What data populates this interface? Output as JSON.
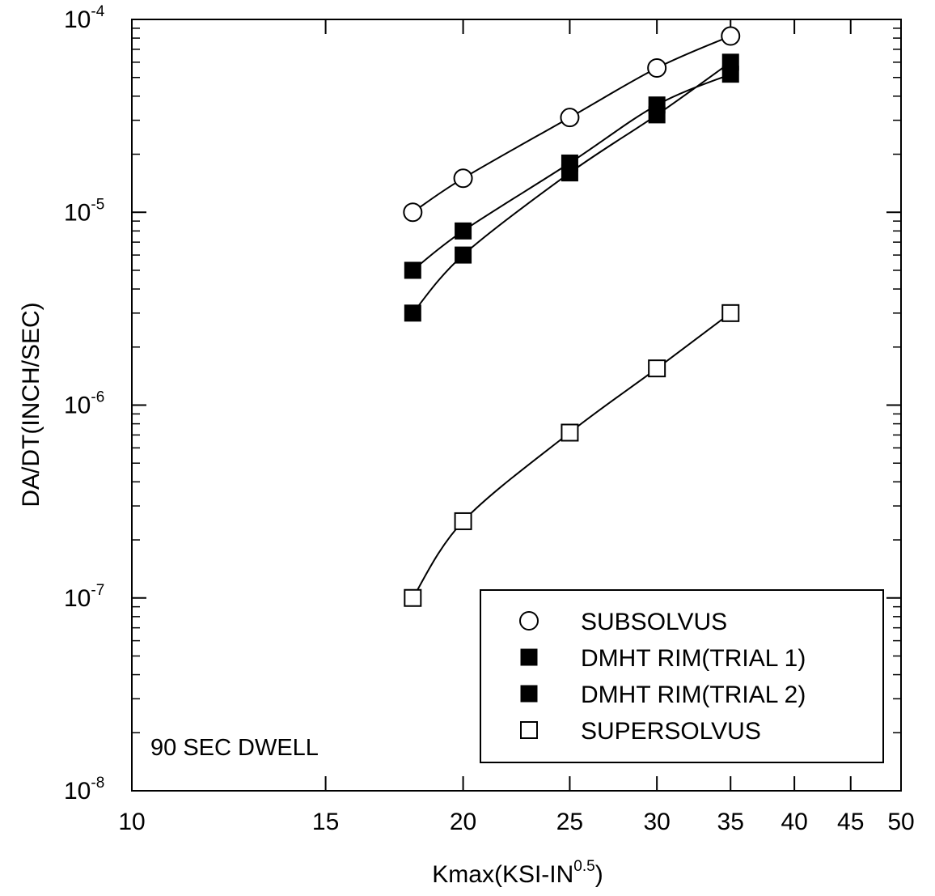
{
  "chart_data": {
    "type": "line",
    "xscale": "log",
    "yscale": "log",
    "xlim": [
      10,
      50
    ],
    "ylim": [
      1e-08,
      0.0001
    ],
    "xlabel": {
      "base": "Kmax(KSI-IN",
      "sup": "0.5",
      "tail": ")"
    },
    "ylabel": "DA/DT(INCH/SEC)",
    "xticks": [
      {
        "value": 10,
        "label": "10"
      },
      {
        "value": 15,
        "label": "15"
      },
      {
        "value": 20,
        "label": "20"
      },
      {
        "value": 25,
        "label": "25"
      },
      {
        "value": 30,
        "label": "30"
      },
      {
        "value": 35,
        "label": "35"
      },
      {
        "value": 40,
        "label": "40"
      },
      {
        "value": 45,
        "label": "45"
      },
      {
        "value": 50,
        "label": "50"
      }
    ],
    "yticks": [
      {
        "value": 1e-08,
        "base": "10",
        "exp": "-8"
      },
      {
        "value": 1e-07,
        "base": "10",
        "exp": "-7"
      },
      {
        "value": 1e-06,
        "base": "10",
        "exp": "-6"
      },
      {
        "value": 1e-05,
        "base": "10",
        "exp": "-5"
      },
      {
        "value": 0.0001,
        "base": "10",
        "exp": "-4"
      }
    ],
    "annotation": "90 SEC DWELL",
    "legend_position": "bottom-right",
    "grid": false,
    "series": [
      {
        "name": "SUBSOLVUS",
        "marker": "open-circle",
        "x": [
          18,
          20,
          25,
          30,
          35
        ],
        "y": [
          1e-05,
          1.5e-05,
          3.1e-05,
          5.6e-05,
          8.2e-05
        ]
      },
      {
        "name": "DMHT RIM(TRIAL 1)",
        "marker": "filled-square",
        "x": [
          18,
          20,
          25,
          30,
          35
        ],
        "y": [
          5e-06,
          8e-06,
          1.8e-05,
          3.6e-05,
          5.2e-05
        ]
      },
      {
        "name": "DMHT RIM(TRIAL 2)",
        "marker": "filled-square",
        "x": [
          18,
          20,
          25,
          30,
          35
        ],
        "y": [
          3e-06,
          6e-06,
          1.6e-05,
          3.2e-05,
          6e-05
        ]
      },
      {
        "name": "SUPERSOLVUS",
        "marker": "open-square",
        "x": [
          18,
          20,
          25,
          30,
          35
        ],
        "y": [
          1e-07,
          2.5e-07,
          7.2e-07,
          1.55e-06,
          3e-06
        ]
      }
    ]
  }
}
